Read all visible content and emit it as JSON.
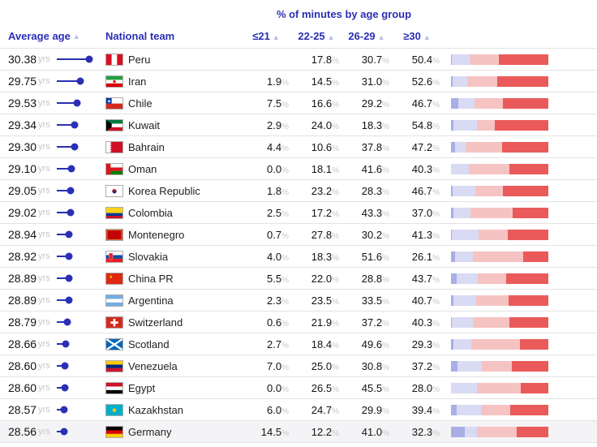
{
  "headers": {
    "super": "% of minutes by age group",
    "avg_age": "Average age",
    "team": "National team",
    "buckets": [
      "≤21",
      "22-25",
      "26-29",
      "≥30"
    ]
  },
  "style": {
    "accent": "#2a2fb5",
    "muted": "#c7c7c7",
    "seg_colors": [
      "#a9aee6",
      "#d9dbf4",
      "#f6c3c3",
      "#ea5a5a"
    ],
    "lollipop_min": 28.0,
    "lollipop_max": 31.0
  },
  "rows": [
    {
      "age": "30.38",
      "team": "Peru",
      "flag": "pe",
      "pcts": [
        "",
        "17.8",
        "30.7",
        "50.4"
      ],
      "bar": [
        1,
        17.8,
        30.7,
        50.4
      ]
    },
    {
      "age": "29.75",
      "team": "Iran",
      "flag": "ir",
      "pcts": [
        "1.9",
        "14.5",
        "31.0",
        "52.6"
      ],
      "bar": [
        1.9,
        14.5,
        31.0,
        52.6
      ]
    },
    {
      "age": "29.53",
      "team": "Chile",
      "flag": "cl",
      "pcts": [
        "7.5",
        "16.6",
        "29.2",
        "46.7"
      ],
      "bar": [
        7.5,
        16.6,
        29.2,
        46.7
      ]
    },
    {
      "age": "29.34",
      "team": "Kuwait",
      "flag": "kw",
      "pcts": [
        "2.9",
        "24.0",
        "18.3",
        "54.8"
      ],
      "bar": [
        2.9,
        24.0,
        18.3,
        54.8
      ]
    },
    {
      "age": "29.30",
      "team": "Bahrain",
      "flag": "bh",
      "pcts": [
        "4.4",
        "10.6",
        "37.8",
        "47.2"
      ],
      "bar": [
        4.4,
        10.6,
        37.8,
        47.2
      ]
    },
    {
      "age": "29.10",
      "team": "Oman",
      "flag": "om",
      "pcts": [
        "0.0",
        "18.1",
        "41.6",
        "40.3"
      ],
      "bar": [
        0.0,
        18.1,
        41.6,
        40.3
      ]
    },
    {
      "age": "29.05",
      "team": "Korea Republic",
      "flag": "kr",
      "pcts": [
        "1.8",
        "23.2",
        "28.3",
        "46.7"
      ],
      "bar": [
        1.8,
        23.2,
        28.3,
        46.7
      ]
    },
    {
      "age": "29.02",
      "team": "Colombia",
      "flag": "co",
      "pcts": [
        "2.5",
        "17.2",
        "43.3",
        "37.0"
      ],
      "bar": [
        2.5,
        17.2,
        43.3,
        37.0
      ]
    },
    {
      "age": "28.94",
      "team": "Montenegro",
      "flag": "me",
      "pcts": [
        "0.7",
        "27.8",
        "30.2",
        "41.3"
      ],
      "bar": [
        0.7,
        27.8,
        30.2,
        41.3
      ]
    },
    {
      "age": "28.92",
      "team": "Slovakia",
      "flag": "sk",
      "pcts": [
        "4.0",
        "18.3",
        "51.6",
        "26.1"
      ],
      "bar": [
        4.0,
        18.3,
        51.6,
        26.1
      ]
    },
    {
      "age": "28.89",
      "team": "China PR",
      "flag": "cn",
      "pcts": [
        "5.5",
        "22.0",
        "28.8",
        "43.7"
      ],
      "bar": [
        5.5,
        22.0,
        28.8,
        43.7
      ]
    },
    {
      "age": "28.89",
      "team": "Argentina",
      "flag": "ar",
      "pcts": [
        "2.3",
        "23.5",
        "33.5",
        "40.7"
      ],
      "bar": [
        2.3,
        23.5,
        33.5,
        40.7
      ]
    },
    {
      "age": "28.79",
      "team": "Switzerland",
      "flag": "ch",
      "pcts": [
        "0.6",
        "21.9",
        "37.2",
        "40.3"
      ],
      "bar": [
        0.6,
        21.9,
        37.2,
        40.3
      ]
    },
    {
      "age": "28.66",
      "team": "Scotland",
      "flag": "sco",
      "pcts": [
        "2.7",
        "18.4",
        "49.6",
        "29.3"
      ],
      "bar": [
        2.7,
        18.4,
        49.6,
        29.3
      ]
    },
    {
      "age": "28.60",
      "team": "Venezuela",
      "flag": "ve",
      "pcts": [
        "7.0",
        "25.0",
        "30.8",
        "37.2"
      ],
      "bar": [
        7.0,
        25.0,
        30.8,
        37.2
      ]
    },
    {
      "age": "28.60",
      "team": "Egypt",
      "flag": "eg",
      "pcts": [
        "0.0",
        "26.5",
        "45.5",
        "28.0"
      ],
      "bar": [
        0.0,
        26.5,
        45.5,
        28.0
      ]
    },
    {
      "age": "28.57",
      "team": "Kazakhstan",
      "flag": "kz",
      "pcts": [
        "6.0",
        "24.7",
        "29.9",
        "39.4"
      ],
      "bar": [
        6.0,
        24.7,
        29.9,
        39.4
      ]
    },
    {
      "age": "28.56",
      "team": "Germany",
      "flag": "de",
      "pcts": [
        "14.5",
        "12.2",
        "41.0",
        "32.3"
      ],
      "bar": [
        14.5,
        12.2,
        41.0,
        32.3
      ],
      "alt": true
    }
  ]
}
